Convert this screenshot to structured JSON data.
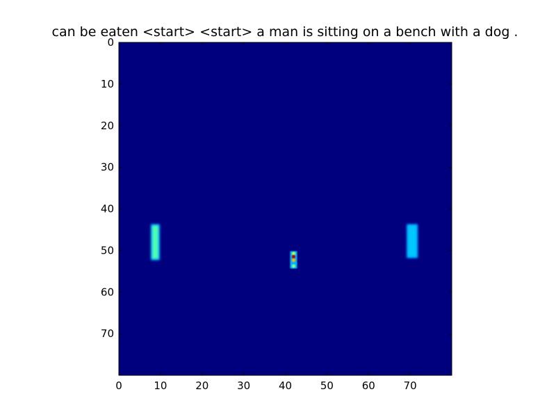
{
  "chart_data": {
    "type": "heatmap",
    "title": "can be eaten <start> <start> a man is sitting on a bench with a dog .",
    "xlabel": "",
    "ylabel": "",
    "xlim": [
      0,
      80
    ],
    "ylim": [
      80,
      0
    ],
    "x_ticks": [
      0,
      10,
      20,
      30,
      40,
      50,
      60,
      70
    ],
    "y_ticks": [
      0,
      10,
      20,
      30,
      40,
      50,
      60,
      70
    ],
    "colormap": "jet",
    "background_color": "#00007f",
    "grid": false,
    "legend": "none",
    "hotspots": [
      {
        "x": [
          8,
          9.5
        ],
        "y": [
          44,
          52
        ],
        "intensity": 0.45
      },
      {
        "x": [
          69.5,
          71.5
        ],
        "y": [
          44,
          51.5
        ],
        "intensity": 0.32
      },
      {
        "x": [
          41.5,
          42.5
        ],
        "y": [
          50.5,
          54
        ],
        "intensity": 0.85
      }
    ]
  }
}
